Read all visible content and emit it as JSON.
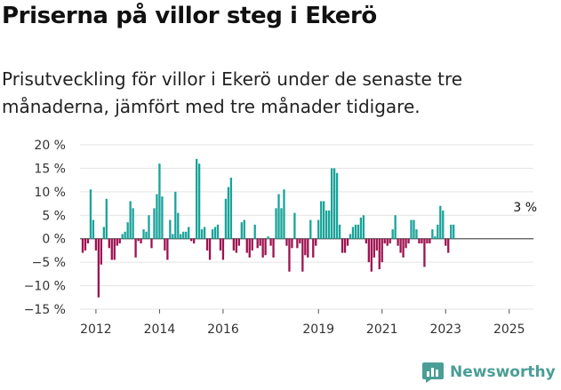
{
  "header": {
    "title": "Priserna på villor steg i Ekerö",
    "subtitle": "Prisutveckling för villor i Ekerö under de senaste tre månaderna, jämfört med tre månader tidigare."
  },
  "brand": {
    "name": "Newsworthy",
    "color": "#4a9e95"
  },
  "chart_data": {
    "type": "bar",
    "title": "",
    "xlabel": "",
    "ylabel": "",
    "ylim": [
      -15,
      20
    ],
    "yticks": [
      20,
      15,
      10,
      5,
      0,
      -5,
      -10,
      -15
    ],
    "ytick_labels": [
      "20 %",
      "15 %",
      "10 %",
      "5 %",
      "0 %",
      "−5 %",
      "−10 %",
      "−15 %"
    ],
    "xticks": [
      {
        "label": "2012",
        "index": 5
      },
      {
        "label": "2014",
        "index": 29
      },
      {
        "label": "2016",
        "index": 53
      },
      {
        "label": "2019",
        "index": 89
      },
      {
        "label": "2021",
        "index": 113
      },
      {
        "label": "2023",
        "index": 137
      },
      {
        "label": "2025",
        "index": 161
      }
    ],
    "positive_color": "#1aa39a",
    "negative_color": "#9e1251",
    "annotation": {
      "text": "3 %",
      "index": 166,
      "value": 3
    },
    "values": [
      -3,
      -2.5,
      -1,
      10.5,
      4,
      -2.5,
      -12.5,
      -5.5,
      2.5,
      8.5,
      -2,
      -4.5,
      -4.5,
      -1.5,
      -1,
      1,
      1.5,
      3.5,
      8,
      6.5,
      -4,
      -0.5,
      -1,
      2,
      1.5,
      5,
      -2,
      6.5,
      9.5,
      16,
      9,
      -2.5,
      -4.5,
      4,
      1,
      10,
      5.5,
      1,
      1.5,
      1.5,
      2.5,
      -0.5,
      -1,
      17,
      16,
      2,
      2.5,
      -2.5,
      -4.5,
      2,
      2.5,
      3,
      -2.5,
      -4.5,
      8.5,
      11,
      13,
      -2.5,
      -3,
      -1.5,
      3.5,
      4,
      -3,
      -4,
      -2.5,
      3,
      -2,
      -1.5,
      -4,
      -3.5,
      0.5,
      -1.5,
      -4,
      6.5,
      9.5,
      6.5,
      10.5,
      -1.5,
      -7,
      -2,
      5.5,
      -2,
      -1,
      -7,
      -3.5,
      -4,
      4,
      -4,
      -1.5,
      4,
      8,
      8,
      6,
      6,
      15,
      15,
      14,
      3,
      -3,
      -3,
      -1.5,
      1,
      2.5,
      3,
      3,
      4.5,
      5,
      -1,
      -5,
      -7,
      -4,
      -2.5,
      -6.5,
      -5,
      -1,
      -1.5,
      -1,
      2,
      5,
      -1.5,
      -3,
      -4,
      -2,
      -1,
      4,
      4,
      2,
      -1,
      -1,
      -6,
      -1,
      -1,
      2,
      0.5,
      3,
      7,
      6,
      -1.5,
      -3,
      3,
      3
    ]
  }
}
